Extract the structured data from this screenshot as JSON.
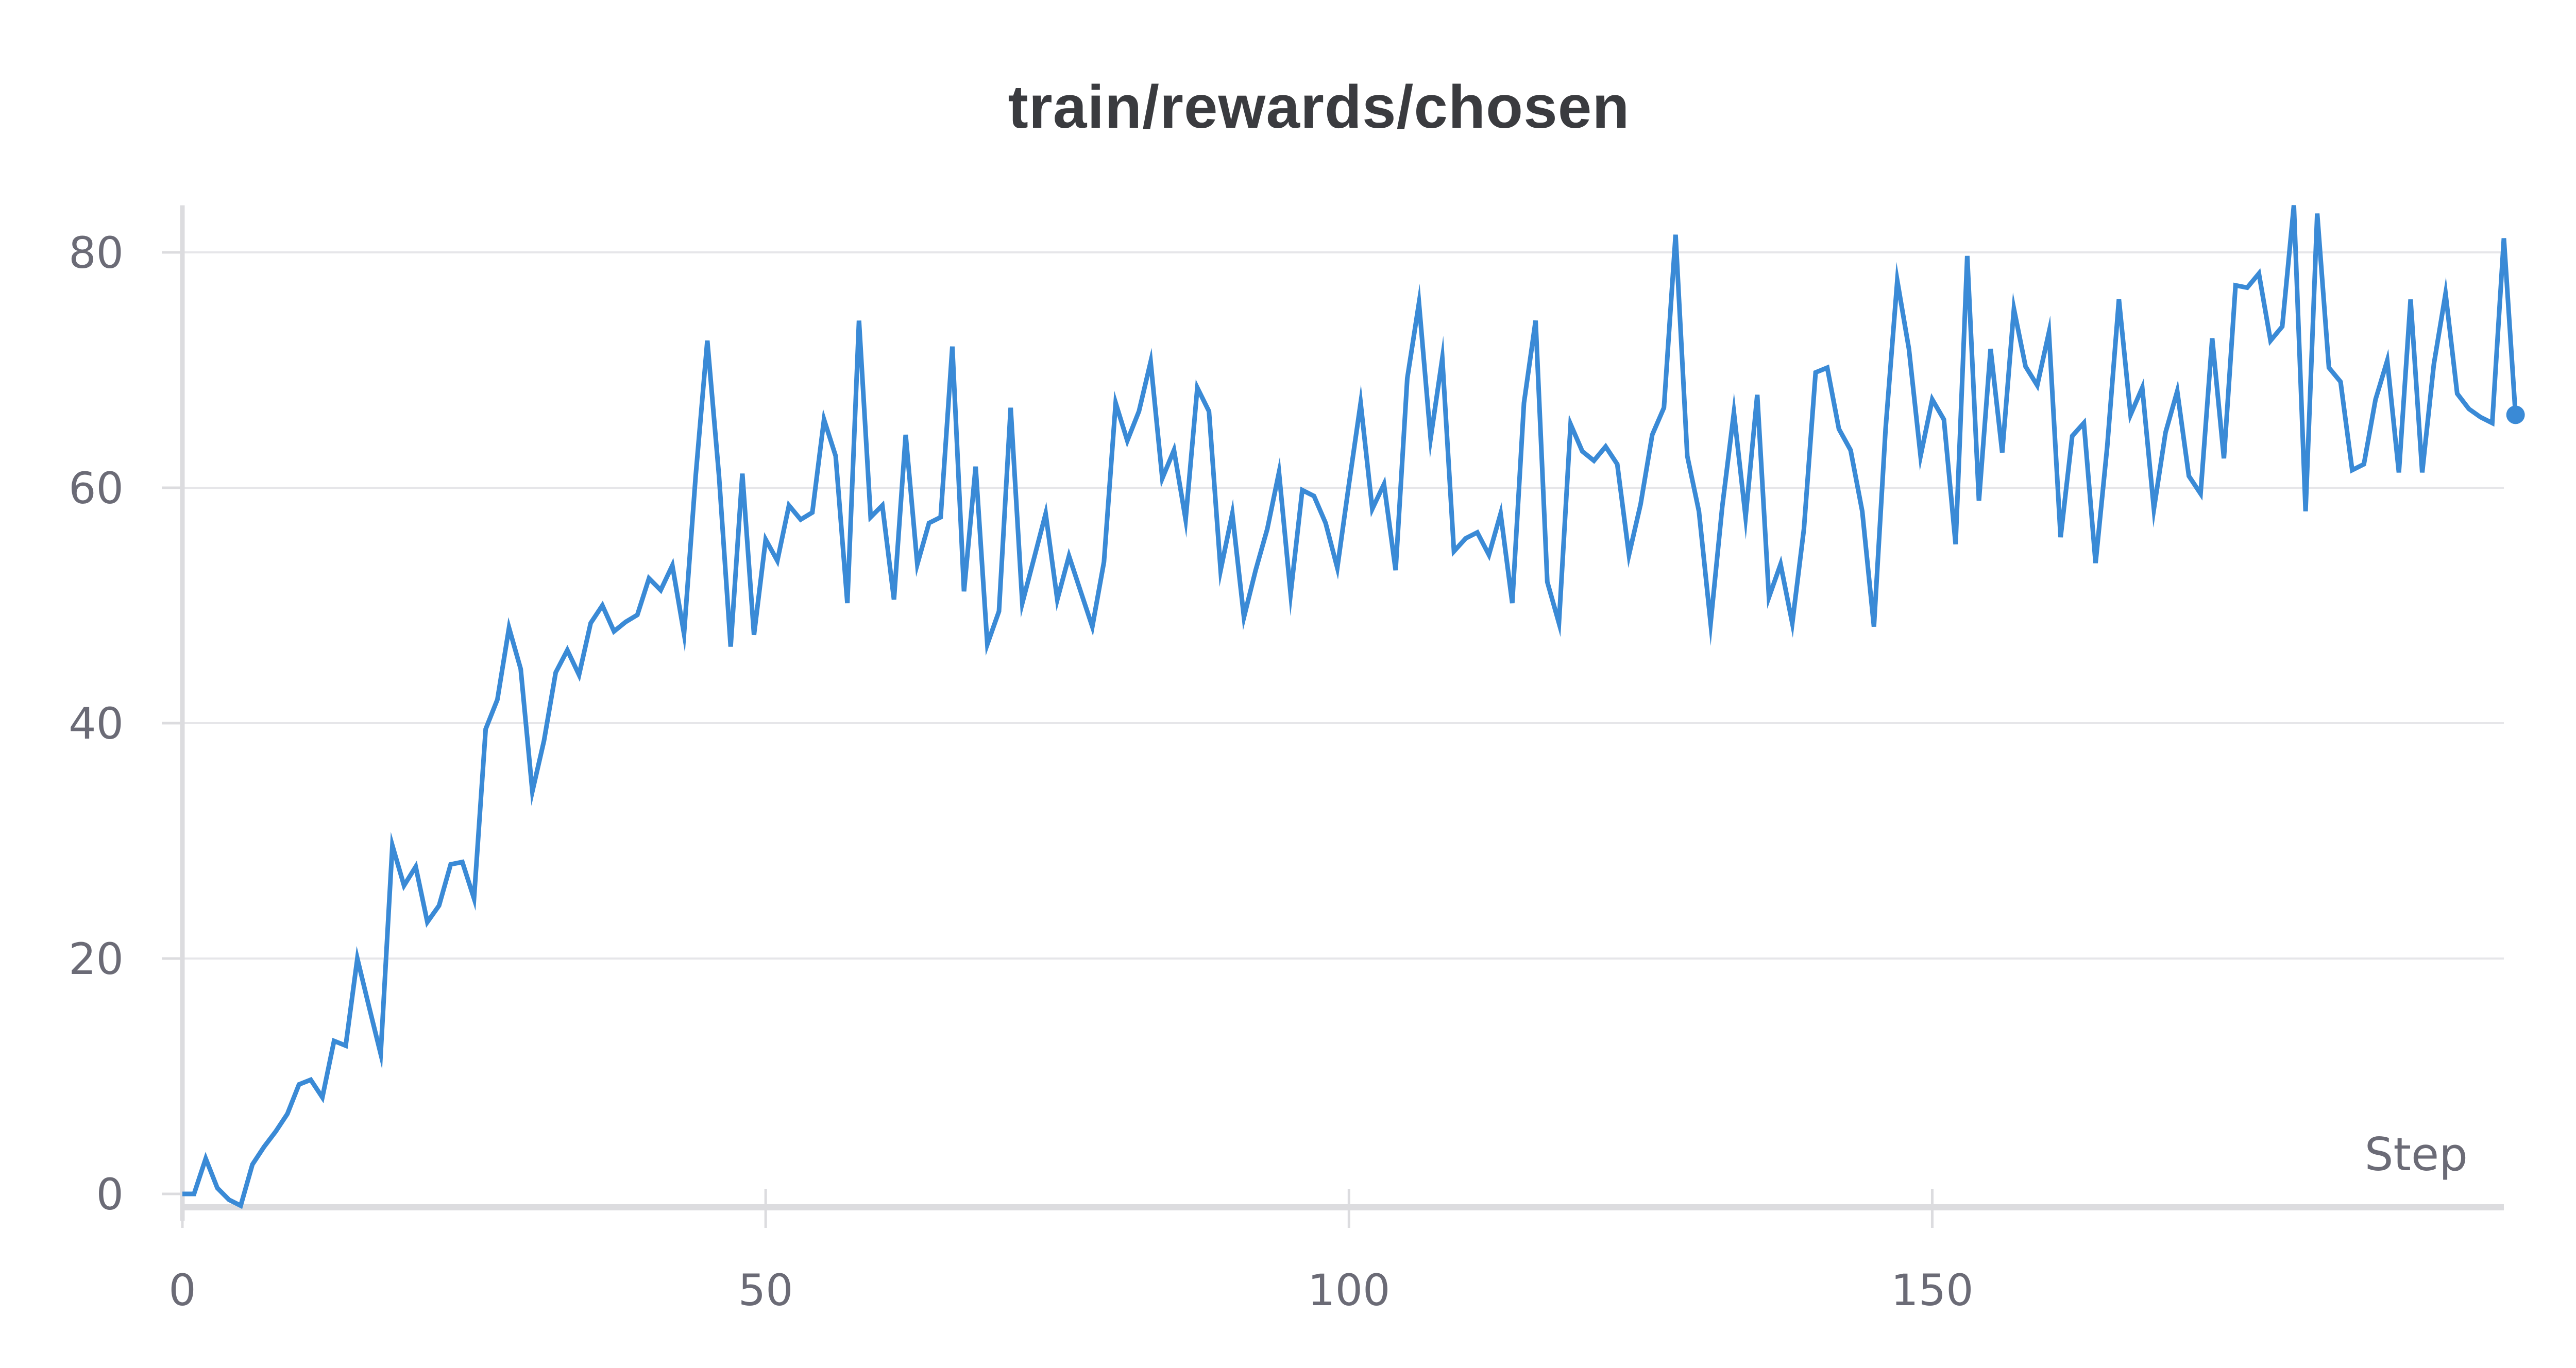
{
  "chart_data": {
    "type": "line",
    "title": "train/rewards/chosen",
    "xlabel": "Step",
    "ylabel": "",
    "xlim": [
      0,
      199
    ],
    "ylim": [
      -1,
      84
    ],
    "x_ticks": [
      0,
      50,
      100,
      150
    ],
    "y_ticks": [
      0,
      20,
      40,
      60,
      80
    ],
    "grid": "horizontal",
    "colors": {
      "line": "#3a8ad6",
      "grid": "#e6e6e9",
      "axis": "#dcdcdf",
      "text": "#6b6b76",
      "title": "#3a3b3f"
    },
    "series": [
      {
        "values": [
          0,
          0,
          3,
          0.5,
          -0.5,
          -1,
          2.5,
          4,
          5.3,
          6.8,
          9.3,
          9.7,
          8.2,
          13,
          12.6,
          20,
          15.9,
          11.9,
          29.6,
          26.2,
          27.8,
          23.1,
          24.5,
          28,
          28.2,
          25.1,
          39.5,
          42,
          48.1,
          44.6,
          34.2,
          38.5,
          44.3,
          46.2,
          44.1,
          48.5,
          50,
          47.8,
          48.6,
          49.2,
          52.3,
          51.3,
          53.4,
          47.6,
          61,
          72.5,
          61,
          46.5,
          61.2,
          47.5,
          55.6,
          53.8,
          58.5,
          57.3,
          57.9,
          65.8,
          62.7,
          50.2,
          74.2,
          57.5,
          58.5,
          50.5,
          64.5,
          53.5,
          57,
          57.5,
          72,
          51.2,
          61.8,
          46.7,
          49.5,
          66.8,
          50.2,
          54,
          57.8,
          50.5,
          54.2,
          51.2,
          48.2,
          53.7,
          67.2,
          64,
          66.5,
          70.7,
          60.8,
          63.2,
          57.3,
          68.5,
          66.5,
          53,
          57.8,
          49,
          53,
          56.5,
          61.3,
          51,
          59.8,
          59.3,
          57,
          53.2,
          60.3,
          67.2,
          58.2,
          60.3,
          53,
          69.3,
          75.7,
          64.2,
          71,
          54.6,
          55.7,
          56.2,
          54.3,
          57.8,
          50.2,
          67.2,
          74.2,
          52,
          48.5,
          65.4,
          63.1,
          62.3,
          63.5,
          62,
          54.3,
          58.6,
          64.5,
          66.8,
          81.5,
          62.7,
          58,
          48.5,
          58.4,
          66.4,
          57.5,
          67.9,
          50.7,
          53.5,
          48.5,
          56.5,
          69.8,
          70.2,
          65,
          63.2,
          58,
          48.2,
          65,
          77.6,
          71.8,
          62.7,
          67.5,
          65.8,
          55.2,
          79.7,
          58.9,
          71.8,
          63,
          75.2,
          70.3,
          68.7,
          73.2,
          55.8,
          64.4,
          65.5,
          53.6,
          63.5,
          76,
          66.2,
          68.5,
          58.2,
          64.7,
          68.2,
          61,
          59.5,
          72.7,
          62.5,
          77.2,
          77,
          78.2,
          72.5,
          73.7,
          84,
          58,
          83.3,
          70.2,
          69,
          61.5,
          62,
          67.5,
          70.8,
          61.3,
          76,
          61.3,
          70.5,
          76.5,
          68,
          66.7,
          66,
          65.5,
          81.2,
          66.2
        ]
      }
    ]
  }
}
